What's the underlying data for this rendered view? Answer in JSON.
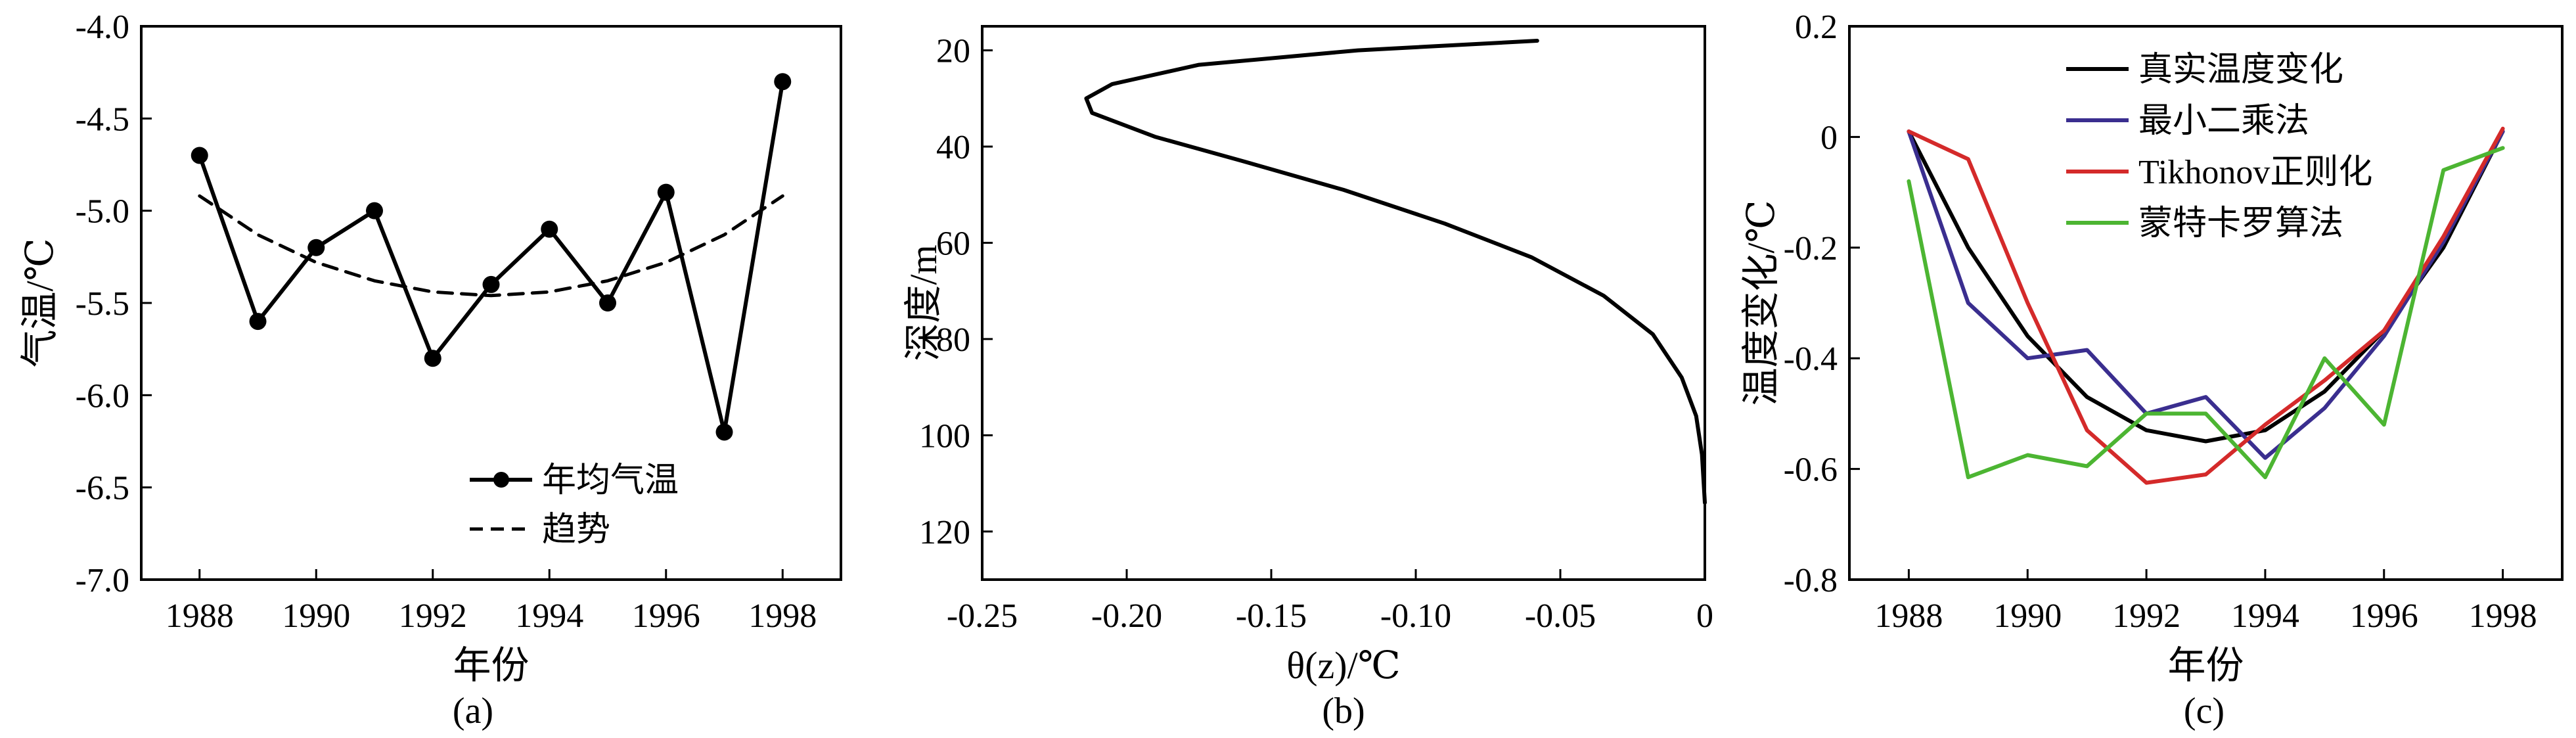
{
  "chart_data": [
    {
      "type": "line",
      "panel_label": "(a)",
      "xlabel": "年份",
      "ylabel": "气温/℃",
      "xlim": [
        1987,
        1999
      ],
      "ylim": [
        -7.0,
        -4.0
      ],
      "x_ticks": [
        "1988",
        "1990",
        "1992",
        "1994",
        "1996",
        "1998"
      ],
      "y_ticks": [
        "-4.0",
        "-4.5",
        "-5.0",
        "-5.5",
        "-6.0",
        "-6.5",
        "-7.0"
      ],
      "legend_position": "lower-right",
      "grid": false,
      "series": [
        {
          "name": "年均气温",
          "style": "solid-markers",
          "color": "#000000",
          "x": [
            1988,
            1989,
            1990,
            1991,
            1992,
            1993,
            1994,
            1995,
            1996,
            1997,
            1998
          ],
          "y": [
            -4.7,
            -5.6,
            -5.2,
            -5.0,
            -5.8,
            -5.4,
            -5.1,
            -5.5,
            -4.9,
            -6.2,
            -4.3
          ]
        },
        {
          "name": "趋势",
          "style": "dashed",
          "color": "#000000",
          "x": [
            1988,
            1989,
            1990,
            1991,
            1992,
            1993,
            1994,
            1995,
            1996,
            1997,
            1998
          ],
          "y": [
            -4.92,
            -5.13,
            -5.28,
            -5.38,
            -5.44,
            -5.46,
            -5.44,
            -5.38,
            -5.28,
            -5.13,
            -4.92
          ]
        }
      ]
    },
    {
      "type": "line",
      "panel_label": "(b)",
      "xlabel": "θ(z)/℃",
      "ylabel": "深度/m",
      "xlim": [
        -0.25,
        0
      ],
      "ylim": [
        15,
        130
      ],
      "y_inverted": true,
      "x_ticks": [
        "-0.25",
        "-0.20",
        "-0.15",
        "-0.10",
        "-0.05",
        "0"
      ],
      "y_ticks": [
        "20",
        "40",
        "60",
        "80",
        "100",
        "120"
      ],
      "grid": false,
      "series": [
        {
          "style": "solid",
          "color": "#000000",
          "x": [
            -0.058,
            -0.12,
            -0.175,
            -0.205,
            -0.214,
            -0.212,
            -0.19,
            -0.16,
            -0.125,
            -0.09,
            -0.06,
            -0.035,
            -0.018,
            -0.008,
            -0.003,
            -0.001,
            0.0
          ],
          "y": [
            18,
            20,
            23,
            27,
            30,
            33,
            38,
            43,
            49,
            56,
            63,
            71,
            79,
            88,
            96,
            104,
            114
          ]
        }
      ]
    },
    {
      "type": "line",
      "panel_label": "(c)",
      "xlabel": "年份",
      "ylabel": "温度变化/℃",
      "xlim": [
        1987,
        1999
      ],
      "ylim": [
        -0.8,
        0.2
      ],
      "x_ticks": [
        "1988",
        "1990",
        "1992",
        "1994",
        "1996",
        "1998"
      ],
      "y_ticks": [
        "0.2",
        "0",
        "-0.2",
        "-0.4",
        "-0.6",
        "-0.8"
      ],
      "legend_position": "top-left",
      "grid": false,
      "series": [
        {
          "name": "真实温度变化",
          "color": "#000000",
          "x": [
            1988,
            1989,
            1990,
            1991,
            1992,
            1993,
            1994,
            1995,
            1996,
            1997,
            1998
          ],
          "y": [
            0.01,
            -0.2,
            -0.36,
            -0.47,
            -0.53,
            -0.55,
            -0.53,
            -0.46,
            -0.35,
            -0.2,
            0.01
          ]
        },
        {
          "name": "最小二乘法",
          "color": "#3a2e8f",
          "x": [
            1988,
            1989,
            1990,
            1991,
            1992,
            1993,
            1994,
            1995,
            1996,
            1997,
            1998
          ],
          "y": [
            0.01,
            -0.3,
            -0.4,
            -0.385,
            -0.5,
            -0.47,
            -0.58,
            -0.49,
            -0.36,
            -0.19,
            0.01
          ]
        },
        {
          "name": "Tikhonov正则化",
          "color": "#d42a2a",
          "x": [
            1988,
            1989,
            1990,
            1991,
            1992,
            1993,
            1994,
            1995,
            1996,
            1997,
            1998
          ],
          "y": [
            0.01,
            -0.04,
            -0.3,
            -0.53,
            -0.625,
            -0.61,
            -0.52,
            -0.44,
            -0.35,
            -0.18,
            0.015
          ]
        },
        {
          "name": "蒙特卡罗算法",
          "color": "#4cb532",
          "x": [
            1988,
            1989,
            1990,
            1991,
            1992,
            1993,
            1994,
            1995,
            1996,
            1997,
            1998
          ],
          "y": [
            -0.08,
            -0.615,
            -0.575,
            -0.595,
            -0.5,
            -0.5,
            -0.615,
            -0.4,
            -0.52,
            -0.06,
            -0.02
          ]
        }
      ]
    }
  ]
}
